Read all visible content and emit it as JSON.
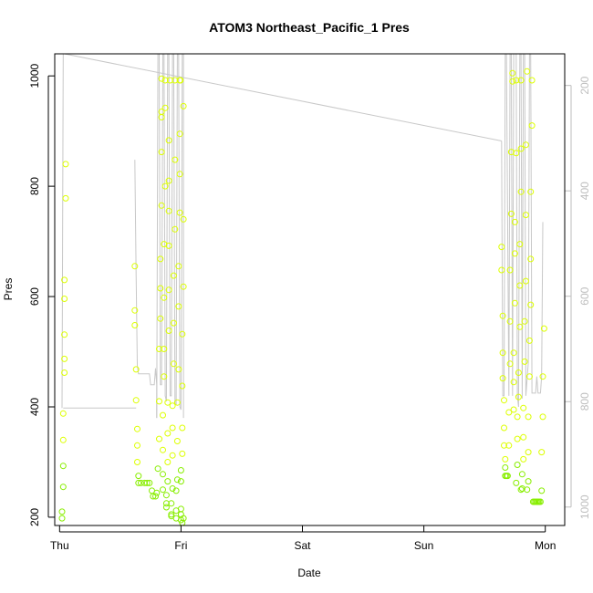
{
  "chart_data": {
    "type": "scatter",
    "title": "ATOM3 Northeast_Pacific_1 Pres",
    "xlabel": "Date",
    "ylabel": "Pres",
    "x_ticks": [
      "Thu",
      "Fri",
      "Sat",
      "Sun",
      "Mon"
    ],
    "xlim": [
      -0.04,
      4.16
    ],
    "ylim": [
      185,
      1040
    ],
    "y_ticks": [
      200,
      400,
      600,
      800,
      1000
    ],
    "y2_ticks": [
      200,
      400,
      600,
      800,
      1000
    ],
    "y2_range": [
      1035,
      140
    ],
    "grid": false,
    "colors": {
      "points_light": "#ddff00",
      "points_dark": "#88ee00",
      "line": "#c8c8c8",
      "right_axis": "#bebebe",
      "axis": "#000000"
    },
    "series": [
      {
        "kind": "points",
        "points": [
          [
            0.02,
            198
          ],
          [
            0.02,
            210
          ],
          [
            0.03,
            255
          ],
          [
            0.03,
            293
          ],
          [
            0.03,
            340
          ],
          [
            0.03,
            388
          ],
          [
            0.04,
            462
          ],
          [
            0.04,
            487
          ],
          [
            0.04,
            531
          ],
          [
            0.04,
            596
          ],
          [
            0.04,
            630
          ],
          [
            0.05,
            778
          ],
          [
            0.05,
            840
          ],
          [
            0.62,
            655
          ],
          [
            0.62,
            575
          ],
          [
            0.62,
            548
          ],
          [
            0.63,
            468
          ],
          [
            0.63,
            412
          ],
          [
            0.64,
            360
          ],
          [
            0.64,
            330
          ],
          [
            0.64,
            300
          ],
          [
            0.65,
            275
          ],
          [
            0.65,
            262
          ],
          [
            0.67,
            262
          ],
          [
            0.7,
            262
          ],
          [
            0.72,
            262
          ],
          [
            0.74,
            262
          ],
          [
            0.76,
            248
          ],
          [
            0.77,
            238
          ],
          [
            0.79,
            238
          ],
          [
            0.8,
            244
          ],
          [
            0.81,
            288
          ],
          [
            0.82,
            342
          ],
          [
            0.82,
            410
          ],
          [
            0.82,
            505
          ],
          [
            0.83,
            560
          ],
          [
            0.83,
            615
          ],
          [
            0.83,
            668
          ],
          [
            0.84,
            765
          ],
          [
            0.84,
            862
          ],
          [
            0.84,
            925
          ],
          [
            0.84,
            935
          ],
          [
            0.84,
            995
          ],
          [
            0.85,
            250
          ],
          [
            0.85,
            278
          ],
          [
            0.85,
            322
          ],
          [
            0.85,
            385
          ],
          [
            0.86,
            455
          ],
          [
            0.86,
            505
          ],
          [
            0.86,
            598
          ],
          [
            0.86,
            695
          ],
          [
            0.87,
            800
          ],
          [
            0.87,
            942
          ],
          [
            0.87,
            992
          ],
          [
            0.88,
            218
          ],
          [
            0.88,
            225
          ],
          [
            0.88,
            240
          ],
          [
            0.89,
            265
          ],
          [
            0.89,
            300
          ],
          [
            0.89,
            352
          ],
          [
            0.89,
            408
          ],
          [
            0.9,
            538
          ],
          [
            0.9,
            612
          ],
          [
            0.9,
            692
          ],
          [
            0.9,
            755
          ],
          [
            0.9,
            810
          ],
          [
            0.9,
            883
          ],
          [
            0.91,
            992
          ],
          [
            0.92,
            202
          ],
          [
            0.92,
            205
          ],
          [
            0.92,
            225
          ],
          [
            0.93,
            252
          ],
          [
            0.93,
            312
          ],
          [
            0.93,
            362
          ],
          [
            0.93,
            402
          ],
          [
            0.94,
            478
          ],
          [
            0.94,
            552
          ],
          [
            0.94,
            638
          ],
          [
            0.95,
            722
          ],
          [
            0.95,
            848
          ],
          [
            0.95,
            992
          ],
          [
            0.96,
            198
          ],
          [
            0.96,
            212
          ],
          [
            0.96,
            248
          ],
          [
            0.97,
            268
          ],
          [
            0.97,
            338
          ],
          [
            0.97,
            408
          ],
          [
            0.98,
            468
          ],
          [
            0.98,
            582
          ],
          [
            0.98,
            655
          ],
          [
            0.99,
            752
          ],
          [
            0.99,
            822
          ],
          [
            0.99,
            895
          ],
          [
            0.99,
            992
          ],
          [
            1.0,
            205
          ],
          [
            1.0,
            215
          ],
          [
            1.0,
            265
          ],
          [
            1.0,
            285
          ],
          [
            1.01,
            315
          ],
          [
            1.01,
            362
          ],
          [
            1.01,
            438
          ],
          [
            1.01,
            532
          ],
          [
            1.02,
            618
          ],
          [
            1.02,
            740
          ],
          [
            1.02,
            945
          ],
          [
            1.0,
            195
          ],
          [
            1.01,
            190
          ],
          [
            1.02,
            198
          ],
          [
            0.995,
            992
          ],
          [
            3.64,
            690
          ],
          [
            3.64,
            648
          ],
          [
            3.65,
            565
          ],
          [
            3.65,
            498
          ],
          [
            3.65,
            452
          ],
          [
            3.66,
            412
          ],
          [
            3.66,
            362
          ],
          [
            3.66,
            330
          ],
          [
            3.67,
            305
          ],
          [
            3.67,
            290
          ],
          [
            3.67,
            275
          ],
          [
            3.68,
            275
          ],
          [
            3.69,
            275
          ],
          [
            3.7,
            330
          ],
          [
            3.7,
            390
          ],
          [
            3.71,
            478
          ],
          [
            3.71,
            555
          ],
          [
            3.71,
            648
          ],
          [
            3.72,
            750
          ],
          [
            3.72,
            862
          ],
          [
            3.73,
            990
          ],
          [
            3.73,
            1005
          ],
          [
            3.74,
            395
          ],
          [
            3.74,
            445
          ],
          [
            3.74,
            498
          ],
          [
            3.75,
            588
          ],
          [
            3.75,
            678
          ],
          [
            3.75,
            735
          ],
          [
            3.76,
            860
          ],
          [
            3.76,
            992
          ],
          [
            3.76,
            262
          ],
          [
            3.77,
            295
          ],
          [
            3.77,
            342
          ],
          [
            3.77,
            382
          ],
          [
            3.78,
            418
          ],
          [
            3.78,
            462
          ],
          [
            3.79,
            545
          ],
          [
            3.79,
            620
          ],
          [
            3.79,
            695
          ],
          [
            3.8,
            790
          ],
          [
            3.8,
            868
          ],
          [
            3.8,
            992
          ],
          [
            3.8,
            250
          ],
          [
            3.81,
            252
          ],
          [
            3.81,
            278
          ],
          [
            3.82,
            305
          ],
          [
            3.82,
            345
          ],
          [
            3.82,
            398
          ],
          [
            3.83,
            482
          ],
          [
            3.83,
            555
          ],
          [
            3.84,
            628
          ],
          [
            3.84,
            748
          ],
          [
            3.84,
            875
          ],
          [
            3.85,
            1008
          ],
          [
            3.85,
            250
          ],
          [
            3.86,
            265
          ],
          [
            3.86,
            318
          ],
          [
            3.86,
            382
          ],
          [
            3.87,
            455
          ],
          [
            3.87,
            520
          ],
          [
            3.88,
            585
          ],
          [
            3.88,
            668
          ],
          [
            3.88,
            790
          ],
          [
            3.89,
            910
          ],
          [
            3.89,
            992
          ],
          [
            3.9,
            228
          ],
          [
            3.91,
            228
          ],
          [
            3.92,
            228
          ],
          [
            3.93,
            228
          ],
          [
            3.94,
            228
          ],
          [
            3.95,
            228
          ],
          [
            3.96,
            228
          ],
          [
            3.97,
            248
          ],
          [
            3.97,
            318
          ],
          [
            3.98,
            382
          ],
          [
            3.98,
            455
          ],
          [
            3.99,
            542
          ]
        ]
      },
      {
        "kind": "line",
        "segments": [
          [
            [
              0.02,
              398
            ],
            [
              0.03,
              1045
            ],
            [
              0.04,
              1045
            ]
          ],
          [
            [
              0.04,
              1040
            ],
            [
              3.64,
              882
            ]
          ],
          [
            [
              0.03,
              398
            ],
            [
              0.63,
              398
            ]
          ],
          [
            [
              0.62,
              848
            ],
            [
              0.63,
              640
            ],
            [
              0.64,
              475
            ],
            [
              0.65,
              460
            ],
            [
              0.74,
              460
            ],
            [
              0.75,
              440
            ],
            [
              0.78,
              440
            ],
            [
              0.79,
              470
            ],
            [
              0.8,
              440
            ],
            [
              0.8,
              380
            ]
          ],
          [
            [
              0.8,
              380
            ],
            [
              0.81,
              1045
            ],
            [
              0.82,
              1045
            ],
            [
              0.83,
              440
            ],
            [
              0.84,
              440
            ],
            [
              0.85,
              1045
            ],
            [
              0.86,
              1045
            ],
            [
              0.87,
              420
            ],
            [
              0.88,
              410
            ],
            [
              0.89,
              1045
            ],
            [
              0.9,
              1045
            ],
            [
              0.91,
              420
            ],
            [
              0.92,
              420
            ],
            [
              0.93,
              1045
            ],
            [
              0.94,
              1045
            ],
            [
              0.95,
              405
            ],
            [
              0.96,
              405
            ],
            [
              0.97,
              1045
            ],
            [
              0.98,
              1045
            ],
            [
              0.99,
              400
            ],
            [
              1.0,
              395
            ],
            [
              1.01,
              1045
            ],
            [
              1.02,
              1045
            ],
            [
              1.02,
              380
            ]
          ],
          [
            [
              3.64,
              882
            ],
            [
              3.65,
              420
            ],
            [
              3.66,
              420
            ],
            [
              3.67,
              1045
            ],
            [
              3.68,
              1045
            ],
            [
              3.7,
              420
            ],
            [
              3.71,
              1045
            ],
            [
              3.72,
              1045
            ],
            [
              3.73,
              420
            ],
            [
              3.74,
              1045
            ],
            [
              3.76,
              1045
            ],
            [
              3.77,
              420
            ],
            [
              3.78,
              400
            ],
            [
              3.79,
              1045
            ],
            [
              3.8,
              1045
            ],
            [
              3.81,
              415
            ],
            [
              3.82,
              1045
            ],
            [
              3.83,
              1045
            ],
            [
              3.84,
              420
            ],
            [
              3.86,
              480
            ],
            [
              3.87,
              1045
            ],
            [
              3.88,
              1045
            ],
            [
              3.89,
              425
            ],
            [
              3.92,
              425
            ],
            [
              3.93,
              455
            ],
            [
              3.94,
              425
            ],
            [
              3.96,
              425
            ],
            [
              3.97,
              455
            ],
            [
              3.98,
              735
            ]
          ]
        ]
      }
    ]
  }
}
